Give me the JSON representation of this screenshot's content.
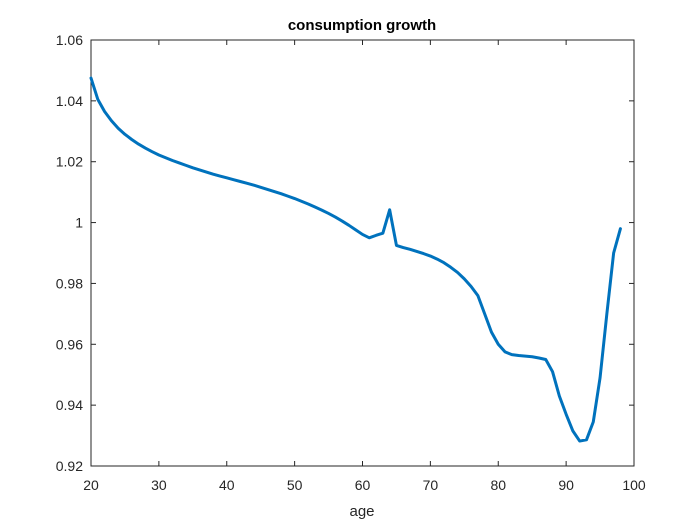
{
  "chart_data": {
    "type": "line",
    "title": "consumption growth",
    "xlabel": "age",
    "ylabel": "",
    "xlim": [
      20,
      100
    ],
    "ylim": [
      0.92,
      1.06
    ],
    "xticks": [
      20,
      30,
      40,
      50,
      60,
      70,
      80,
      90,
      100
    ],
    "yticks": [
      0.92,
      0.94,
      0.96,
      0.98,
      1,
      1.02,
      1.04,
      1.06
    ],
    "xtick_labels": [
      "20",
      "30",
      "40",
      "50",
      "60",
      "70",
      "80",
      "90",
      "100"
    ],
    "ytick_labels": [
      "0.92",
      "0.94",
      "0.96",
      "0.98",
      "1",
      "1.02",
      "1.04",
      "1.06"
    ],
    "grid": false,
    "box": true,
    "series": [
      {
        "color": "#0072BD",
        "x": [
          20,
          21,
          22,
          23,
          24,
          25,
          26,
          27,
          28,
          29,
          30,
          31,
          32,
          33,
          34,
          35,
          36,
          37,
          38,
          39,
          40,
          41,
          42,
          43,
          44,
          45,
          46,
          47,
          48,
          49,
          50,
          51,
          52,
          53,
          54,
          55,
          56,
          57,
          58,
          59,
          60,
          61,
          62,
          63,
          64,
          65,
          66,
          67,
          68,
          69,
          70,
          71,
          72,
          73,
          74,
          75,
          76,
          77,
          78,
          79,
          80,
          81,
          82,
          83,
          84,
          85,
          86,
          87,
          88,
          89,
          90,
          91,
          92,
          93,
          94,
          95,
          96,
          97,
          98
        ],
        "y": [
          1.0475,
          1.0405,
          1.0365,
          1.0335,
          1.031,
          1.029,
          1.0273,
          1.0258,
          1.0245,
          1.0233,
          1.0222,
          1.0213,
          1.0204,
          1.0196,
          1.0188,
          1.018,
          1.0173,
          1.0166,
          1.0159,
          1.0153,
          1.0147,
          1.0141,
          1.0135,
          1.0129,
          1.0123,
          1.0116,
          1.0109,
          1.0102,
          1.0095,
          1.0087,
          1.0079,
          1.007,
          1.0061,
          1.0051,
          1.0041,
          1.003,
          1.0018,
          1.0005,
          0.9991,
          0.9976,
          0.9961,
          0.995,
          0.9958,
          0.9965,
          1.0042,
          0.9925,
          0.9918,
          0.9912,
          0.9905,
          0.9898,
          0.989,
          0.988,
          0.9868,
          0.9853,
          0.9836,
          0.9815,
          0.979,
          0.976,
          0.97,
          0.964,
          0.96,
          0.9575,
          0.9566,
          0.9563,
          0.9561,
          0.9559,
          0.9555,
          0.955,
          0.951,
          0.943,
          0.937,
          0.9315,
          0.9282,
          0.9286,
          0.9345,
          0.949,
          0.97,
          0.99,
          0.998
        ]
      }
    ]
  }
}
